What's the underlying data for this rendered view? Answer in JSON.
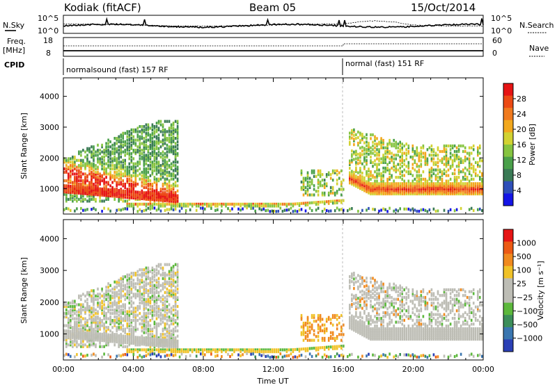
{
  "header": {
    "station": "Kodiak (fitACF)",
    "beam": "Beam 05",
    "date": "15/Oct/2014"
  },
  "sky_panel": {
    "left_label": "N.Sky",
    "right_label": "N.Search",
    "left_ticks": [
      "10^5",
      "10^0"
    ],
    "right_ticks": [
      "10^5",
      "10^0"
    ]
  },
  "freq_panel": {
    "left_label_1": "Freq.",
    "left_label_2": "[MHz]",
    "right_label": "Nave",
    "left_ticks": [
      "18",
      "8"
    ],
    "right_ticks": [
      "60",
      "0"
    ]
  },
  "cpid": {
    "label": "CPID",
    "segments": [
      {
        "name": "normalsound (fast) 157 RF",
        "start_hour": 0
      },
      {
        "name": "normal (fast) 151 RF",
        "start_hour": 16
      }
    ]
  },
  "chart_data": [
    {
      "type": "heatmap",
      "title": "",
      "ylabel": "Slant Range [km]",
      "xlabel": "",
      "ylim": [
        180,
        4600
      ],
      "xlim_hours": [
        0,
        24
      ],
      "y_ticks": [
        1000,
        2000,
        3000,
        4000
      ],
      "colorbar": {
        "label": "Power [dB]",
        "ticks": [
          "28",
          "24",
          "20",
          "16",
          "12",
          "8",
          "4"
        ],
        "colors": [
          "#1414e6",
          "#2e4fb8",
          "#3a7a55",
          "#4aa04a",
          "#86c440",
          "#d2d232",
          "#f2a81e",
          "#f07a1e",
          "#ec4a14",
          "#e61414"
        ]
      }
    },
    {
      "type": "heatmap",
      "title": "",
      "ylabel": "Slant Range [km]",
      "xlabel": "Time UT",
      "ylim": [
        180,
        4600
      ],
      "xlim_hours": [
        0,
        24
      ],
      "y_ticks": [
        1000,
        2000,
        3000,
        4000
      ],
      "x_ticks": [
        "00:00",
        "04:00",
        "08:00",
        "12:00",
        "16:00",
        "20:00",
        "00:00"
      ],
      "colorbar": {
        "label": "Velocity [m s⁻¹]",
        "ticks": [
          "1000",
          "500",
          "100",
          "25",
          "−25",
          "−100",
          "−500",
          "−1000"
        ],
        "colors": [
          "#2a3fb5",
          "#3a76b0",
          "#3c8e5a",
          "#5cb83c",
          "#bdbdb5",
          "#bdbdb5",
          "#f0c228",
          "#f08a1e",
          "#ec5a14",
          "#e61414"
        ]
      }
    }
  ]
}
